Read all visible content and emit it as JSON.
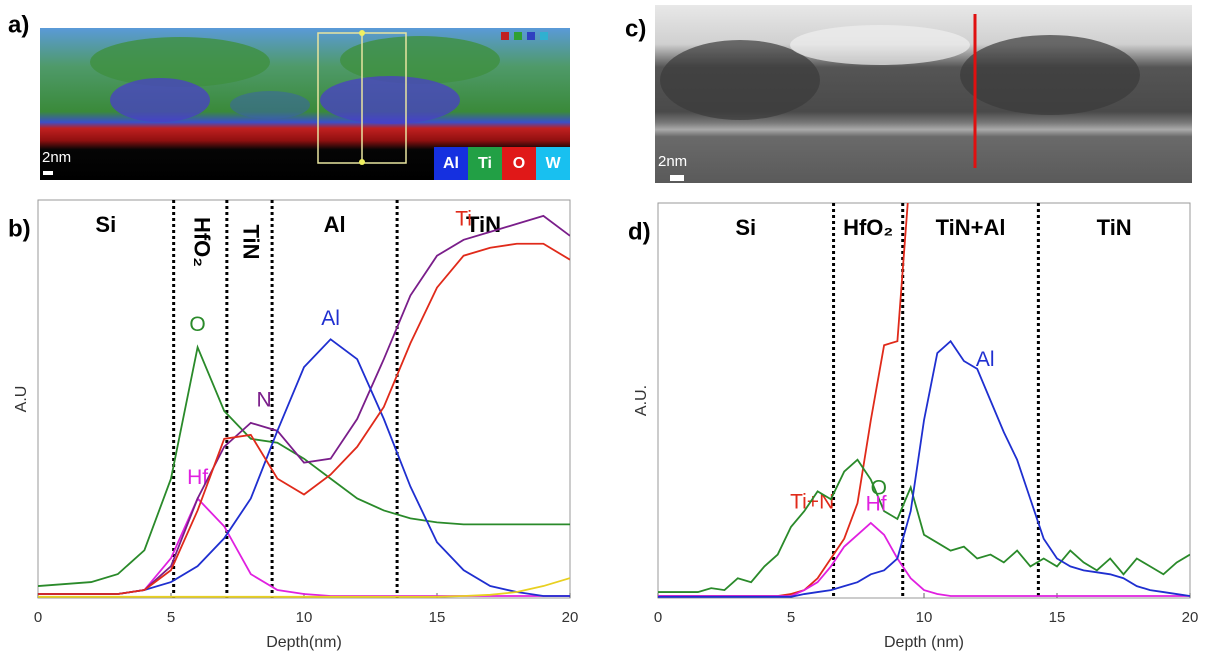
{
  "figure": {
    "panel_a": {
      "label": "a)",
      "scale_bar": "2nm",
      "legend": [
        "Al",
        "Ti",
        "O",
        "W"
      ]
    },
    "panel_c": {
      "label": "c)",
      "scale_bar": "2nm"
    }
  },
  "chart_data": [
    {
      "type": "line",
      "panel_label": "b)",
      "x_label": "Depth(nm)",
      "y_label": "A.U",
      "xlim": [
        0,
        20
      ],
      "xticks": [
        0,
        5,
        10,
        15,
        20
      ],
      "ylim": [
        0,
        100
      ],
      "x": [
        0,
        1,
        2,
        3,
        4,
        5,
        6,
        7,
        8,
        9,
        10,
        11,
        12,
        13,
        14,
        15,
        16,
        17,
        18,
        19,
        20
      ],
      "boundaries": [
        5.1,
        7.1,
        8.8,
        13.5
      ],
      "regions": [
        "Si",
        "HfO₂",
        "TiN",
        "Al",
        "TiN"
      ],
      "series": [
        {
          "name": "O",
          "color": "#2a8a2a",
          "values": [
            3,
            3.5,
            4,
            6,
            12,
            30,
            63,
            47,
            40,
            39,
            35,
            30,
            25,
            22,
            20,
            19,
            18.5,
            18.5,
            18.5,
            18.5,
            18.5
          ]
        },
        {
          "name": "Hf",
          "color": "#e020e0",
          "values": [
            1,
            1,
            1,
            1,
            2,
            10,
            25,
            18,
            6,
            2,
            1,
            0.5,
            0.5,
            0.5,
            0.5,
            0.5,
            0.5,
            0.5,
            0.5,
            0.5,
            0.5
          ]
        },
        {
          "name": "N",
          "color": "#7a1e8a",
          "values": [
            1,
            1,
            1,
            1,
            2,
            8,
            25,
            38,
            44,
            42,
            34,
            35,
            45,
            60,
            76,
            86,
            90,
            92,
            94,
            96,
            91
          ]
        },
        {
          "name": "Al",
          "color": "#1f2fd0",
          "values": [
            1,
            1,
            1,
            1,
            2,
            4,
            8,
            15,
            25,
            42,
            58,
            65,
            60,
            45,
            28,
            14,
            7,
            3,
            1.5,
            0.5,
            0.5
          ]
        },
        {
          "name": "Ti",
          "color": "#e02a1a",
          "values": [
            1,
            1,
            1,
            1,
            2,
            7,
            22,
            40,
            41,
            30,
            26,
            31,
            38,
            48,
            64,
            78,
            86,
            88,
            89,
            89,
            85
          ]
        },
        {
          "color": "#e8d020",
          "values": [
            0.3,
            0.3,
            0.3,
            0.3,
            0.3,
            0.3,
            0.3,
            0.3,
            0.3,
            0.3,
            0.3,
            0.3,
            0.3,
            0.3,
            0.3,
            0.3,
            0.5,
            0.8,
            1.5,
            3,
            5
          ]
        }
      ]
    },
    {
      "type": "line",
      "panel_label": "d)",
      "x_label": "Depth (nm)",
      "y_label": "A.U.",
      "xlim": [
        0,
        20
      ],
      "xticks": [
        0,
        5,
        10,
        15,
        20
      ],
      "ylim": [
        0,
        100
      ],
      "x": [
        0,
        0.5,
        1,
        1.5,
        2,
        2.5,
        3,
        3.5,
        4,
        4.5,
        5,
        5.5,
        6,
        6.5,
        7,
        7.5,
        8,
        8.5,
        9,
        9.5,
        10,
        10.5,
        11,
        11.5,
        12,
        12.5,
        13,
        13.5,
        14,
        14.5,
        15,
        15.5,
        16,
        16.5,
        17,
        17.5,
        18,
        18.5,
        19,
        19.5,
        20
      ],
      "boundaries": [
        6.6,
        9.2,
        14.3
      ],
      "regions": [
        "Si",
        "HfO₂",
        "TiN+Al",
        "TiN"
      ],
      "series": [
        {
          "name": "Ti+N",
          "color": "#e02a1a",
          "values": [
            0.5,
            0.5,
            0.5,
            0.5,
            0.5,
            0.5,
            0.5,
            0.5,
            0.5,
            0.5,
            1,
            2,
            5,
            10,
            15,
            24,
            45,
            64,
            65,
            110,
            null,
            null,
            null,
            null,
            null,
            null,
            null,
            null,
            null,
            null,
            null,
            null,
            null,
            null,
            null,
            null,
            null,
            null,
            null,
            null,
            null
          ]
        },
        {
          "name": "O",
          "color": "#2a8a2a",
          "values": [
            1.5,
            1.5,
            1.5,
            1.5,
            2.5,
            2,
            5,
            4,
            8,
            11,
            18,
            22,
            27,
            25,
            32,
            35,
            30,
            22,
            20,
            28,
            16,
            14,
            12,
            13,
            10,
            11,
            9,
            12,
            8,
            10,
            8,
            12,
            9,
            7,
            10,
            6,
            10,
            8,
            6,
            9,
            11
          ]
        },
        {
          "name": "Hf",
          "color": "#e020e0",
          "values": [
            0.5,
            0.5,
            0.5,
            0.5,
            0.5,
            0.5,
            0.5,
            0.5,
            0.5,
            0.5,
            0.5,
            2,
            4,
            8,
            13,
            16,
            19,
            16,
            10,
            5,
            2,
            1,
            0.5,
            0.5,
            0.5,
            0.5,
            0.5,
            0.5,
            0.5,
            0.5,
            0.5,
            0.5,
            0.5,
            0.5,
            0.5,
            0.5,
            0.5,
            0.5,
            0.5,
            0.5,
            0.5
          ]
        },
        {
          "name": "Al",
          "color": "#1f2fd0",
          "values": [
            0.3,
            0.3,
            0.3,
            0.3,
            0.3,
            0.3,
            0.3,
            0.3,
            0.3,
            0.3,
            0.3,
            1,
            1.5,
            2,
            3,
            4,
            6,
            7,
            10,
            22,
            45,
            62,
            65,
            60,
            58,
            50,
            42,
            35,
            25,
            15,
            10,
            8,
            7,
            6.5,
            6,
            5,
            3,
            2,
            1.5,
            1,
            0.5
          ]
        }
      ]
    }
  ]
}
